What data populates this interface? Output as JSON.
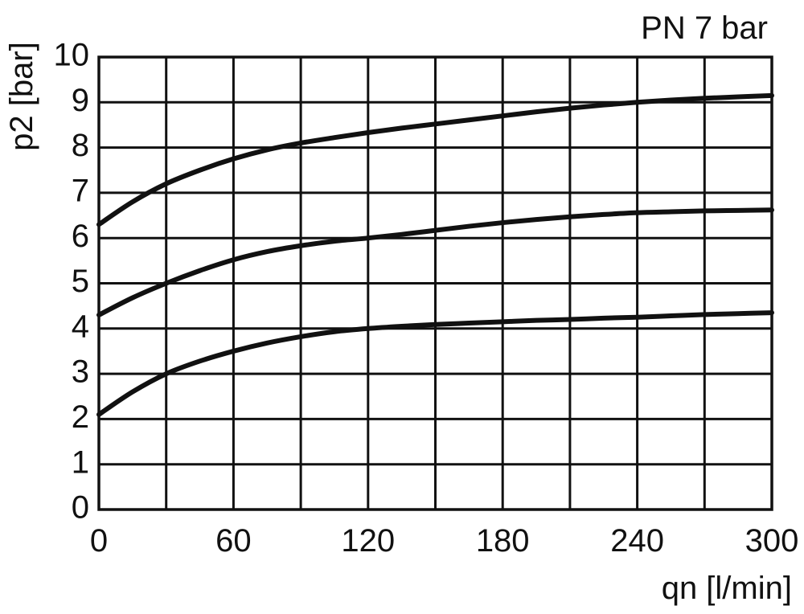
{
  "chart_data": {
    "type": "line",
    "title": "",
    "annotation": "PN 7 bar",
    "xlabel": "qn [l/min]",
    "ylabel": "p2 [bar]",
    "xlim": [
      0,
      300
    ],
    "ylim": [
      0,
      10
    ],
    "xticks": [
      0,
      60,
      120,
      180,
      240,
      300
    ],
    "yticks": [
      0,
      1,
      2,
      3,
      4,
      5,
      6,
      7,
      8,
      9,
      10
    ],
    "grid": true,
    "grid_x_step": 30,
    "grid_y_step": 1,
    "series": [
      {
        "x": [
          0,
          15,
          30,
          45,
          60,
          75,
          90,
          105,
          120,
          135,
          150,
          165,
          180,
          195,
          210,
          225,
          240,
          255,
          270,
          285,
          300
        ],
        "values": [
          6.3,
          6.8,
          7.2,
          7.5,
          7.75,
          7.95,
          8.1,
          8.22,
          8.33,
          8.43,
          8.52,
          8.61,
          8.7,
          8.79,
          8.87,
          8.94,
          9.0,
          9.05,
          9.09,
          9.12,
          9.15
        ]
      },
      {
        "x": [
          0,
          15,
          30,
          45,
          60,
          75,
          90,
          105,
          120,
          135,
          150,
          165,
          180,
          195,
          210,
          225,
          240,
          255,
          270,
          285,
          300
        ],
        "values": [
          4.3,
          4.68,
          5.0,
          5.28,
          5.52,
          5.7,
          5.83,
          5.93,
          6.0,
          6.08,
          6.17,
          6.26,
          6.34,
          6.41,
          6.47,
          6.52,
          6.56,
          6.58,
          6.6,
          6.61,
          6.62
        ]
      },
      {
        "x": [
          0,
          15,
          30,
          45,
          60,
          75,
          90,
          105,
          120,
          135,
          150,
          165,
          180,
          195,
          210,
          225,
          240,
          255,
          270,
          285,
          300
        ],
        "values": [
          2.1,
          2.6,
          3.0,
          3.28,
          3.5,
          3.68,
          3.82,
          3.93,
          4.0,
          4.05,
          4.09,
          4.12,
          4.15,
          4.18,
          4.2,
          4.23,
          4.25,
          4.28,
          4.31,
          4.33,
          4.35
        ]
      }
    ],
    "colors": {
      "background": "#ffffff",
      "foreground": "#111111"
    }
  }
}
